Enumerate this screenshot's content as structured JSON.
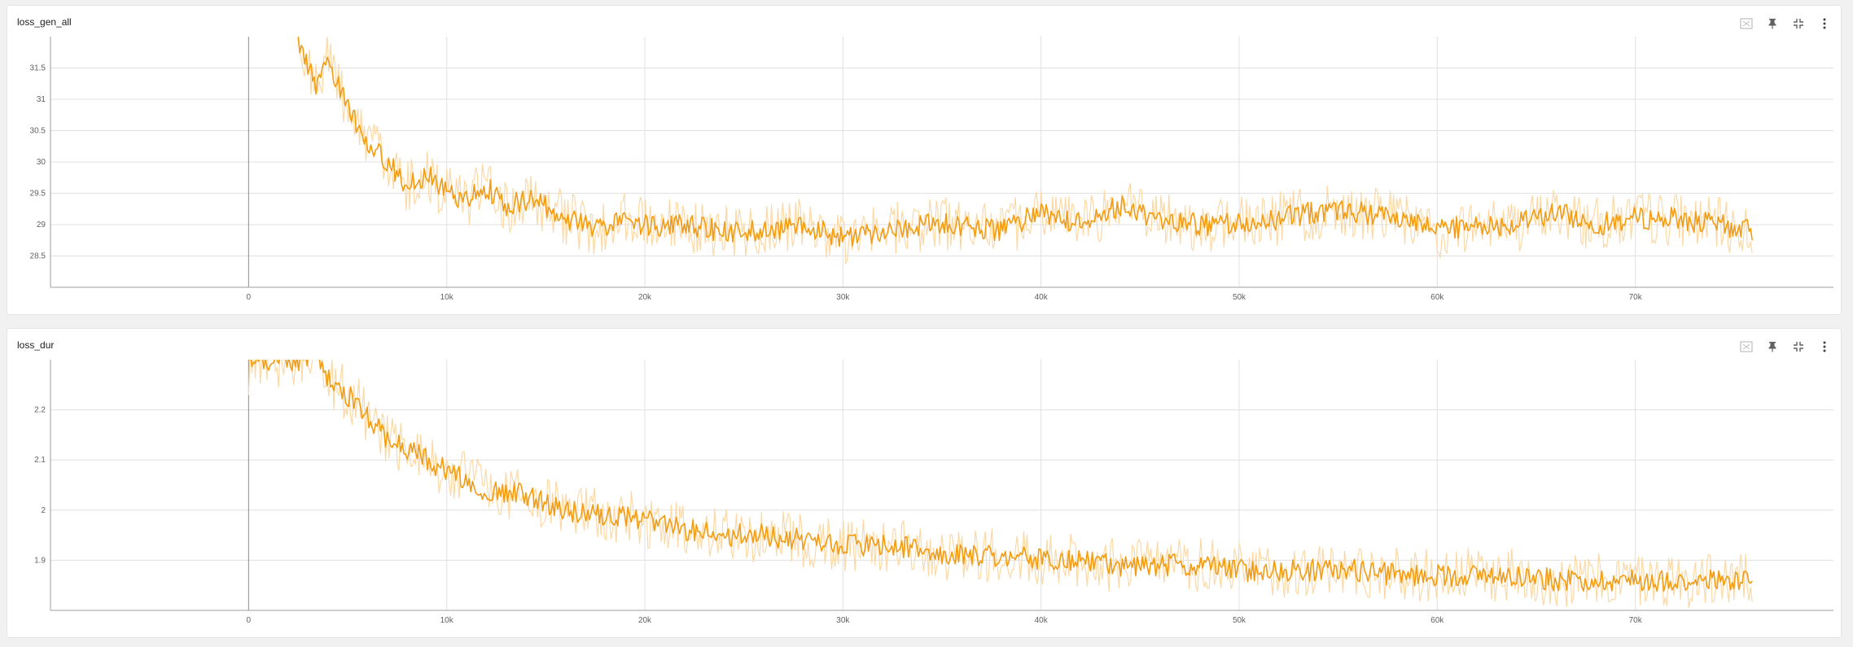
{
  "colors": {
    "series": "#f39c12",
    "raw": "#fbd9a6",
    "grid": "#e0e0e0",
    "axis": "#9e9e9e"
  },
  "toolbar_icons": [
    "fit-domain-icon",
    "pin-icon",
    "fullscreen-icon",
    "more-menu-icon"
  ],
  "chart_data": [
    {
      "type": "line",
      "title": "loss_gen_all",
      "xlabel": "",
      "ylabel": "",
      "x_ticks": [
        0,
        10000,
        20000,
        30000,
        40000,
        50000,
        60000,
        70000
      ],
      "x_tick_labels": [
        "0",
        "10k",
        "20k",
        "30k",
        "40k",
        "50k",
        "60k",
        "70k"
      ],
      "y_ticks": [
        28.5,
        29,
        29.5,
        30,
        30.5,
        31,
        31.5
      ],
      "y_tick_labels": [
        "28.5",
        "29",
        "29.5",
        "30",
        "30.5",
        "31",
        "31.5"
      ],
      "xlim": [
        -10000,
        80000
      ],
      "ylim": [
        28.0,
        32.0
      ],
      "grid": true,
      "series": [
        {
          "x": [
            2500,
            3000,
            3500,
            4000,
            5000,
            6000,
            7000,
            8000,
            9000,
            10000,
            11000,
            12000,
            13000,
            14000,
            15000,
            16000,
            17000,
            18000,
            19000,
            20000,
            22000,
            24000,
            26000,
            28000,
            30000,
            32000,
            34000,
            36000,
            38000,
            40000,
            42000,
            44000,
            46000,
            48000,
            50000,
            52000,
            54000,
            56000,
            58000,
            60000,
            62000,
            64000,
            66000,
            68000,
            70000,
            72000,
            74000,
            75900
          ],
          "values": [
            32.0,
            31.5,
            31.2,
            31.6,
            30.9,
            30.3,
            30.0,
            29.6,
            29.8,
            29.5,
            29.4,
            29.6,
            29.3,
            29.4,
            29.3,
            29.1,
            29.0,
            28.9,
            29.1,
            29.0,
            29.0,
            28.9,
            28.9,
            29.0,
            28.8,
            28.9,
            29.0,
            29.0,
            28.9,
            29.2,
            29.0,
            29.3,
            29.1,
            29.0,
            29.0,
            29.1,
            29.2,
            29.2,
            29.1,
            28.9,
            29.0,
            29.0,
            29.2,
            29.0,
            29.1,
            29.1,
            29.0,
            28.9
          ]
        }
      ]
    },
    {
      "type": "line",
      "title": "loss_dur",
      "xlabel": "",
      "ylabel": "",
      "x_ticks": [
        0,
        10000,
        20000,
        30000,
        40000,
        50000,
        60000,
        70000
      ],
      "x_tick_labels": [
        "0",
        "10k",
        "20k",
        "30k",
        "40k",
        "50k",
        "60k",
        "70k"
      ],
      "y_ticks": [
        1.9,
        2.0,
        2.1,
        2.2
      ],
      "y_tick_labels": [
        "1.9",
        "2",
        "2.1",
        "2.2"
      ],
      "xlim": [
        -10000,
        80000
      ],
      "ylim": [
        1.8,
        2.3
      ],
      "grid": true,
      "series": [
        {
          "x": [
            0,
            100,
            3500,
            4000,
            5000,
            6000,
            7000,
            8000,
            9000,
            10000,
            12000,
            14000,
            16000,
            18000,
            20000,
            22000,
            24000,
            26000,
            28000,
            30000,
            32000,
            34000,
            36000,
            38000,
            40000,
            42000,
            44000,
            46000,
            48000,
            50000,
            52000,
            54000,
            56000,
            58000,
            60000,
            62000,
            64000,
            66000,
            68000,
            70000,
            72000,
            74000,
            75900
          ],
          "values": [
            2.28,
            2.3,
            2.3,
            2.26,
            2.23,
            2.19,
            2.14,
            2.12,
            2.1,
            2.08,
            2.04,
            2.03,
            2.0,
            1.99,
            1.98,
            1.96,
            1.95,
            1.95,
            1.94,
            1.93,
            1.93,
            1.92,
            1.91,
            1.91,
            1.9,
            1.9,
            1.89,
            1.89,
            1.89,
            1.88,
            1.88,
            1.88,
            1.88,
            1.87,
            1.87,
            1.87,
            1.87,
            1.86,
            1.86,
            1.86,
            1.86,
            1.86,
            1.86
          ]
        }
      ]
    }
  ]
}
